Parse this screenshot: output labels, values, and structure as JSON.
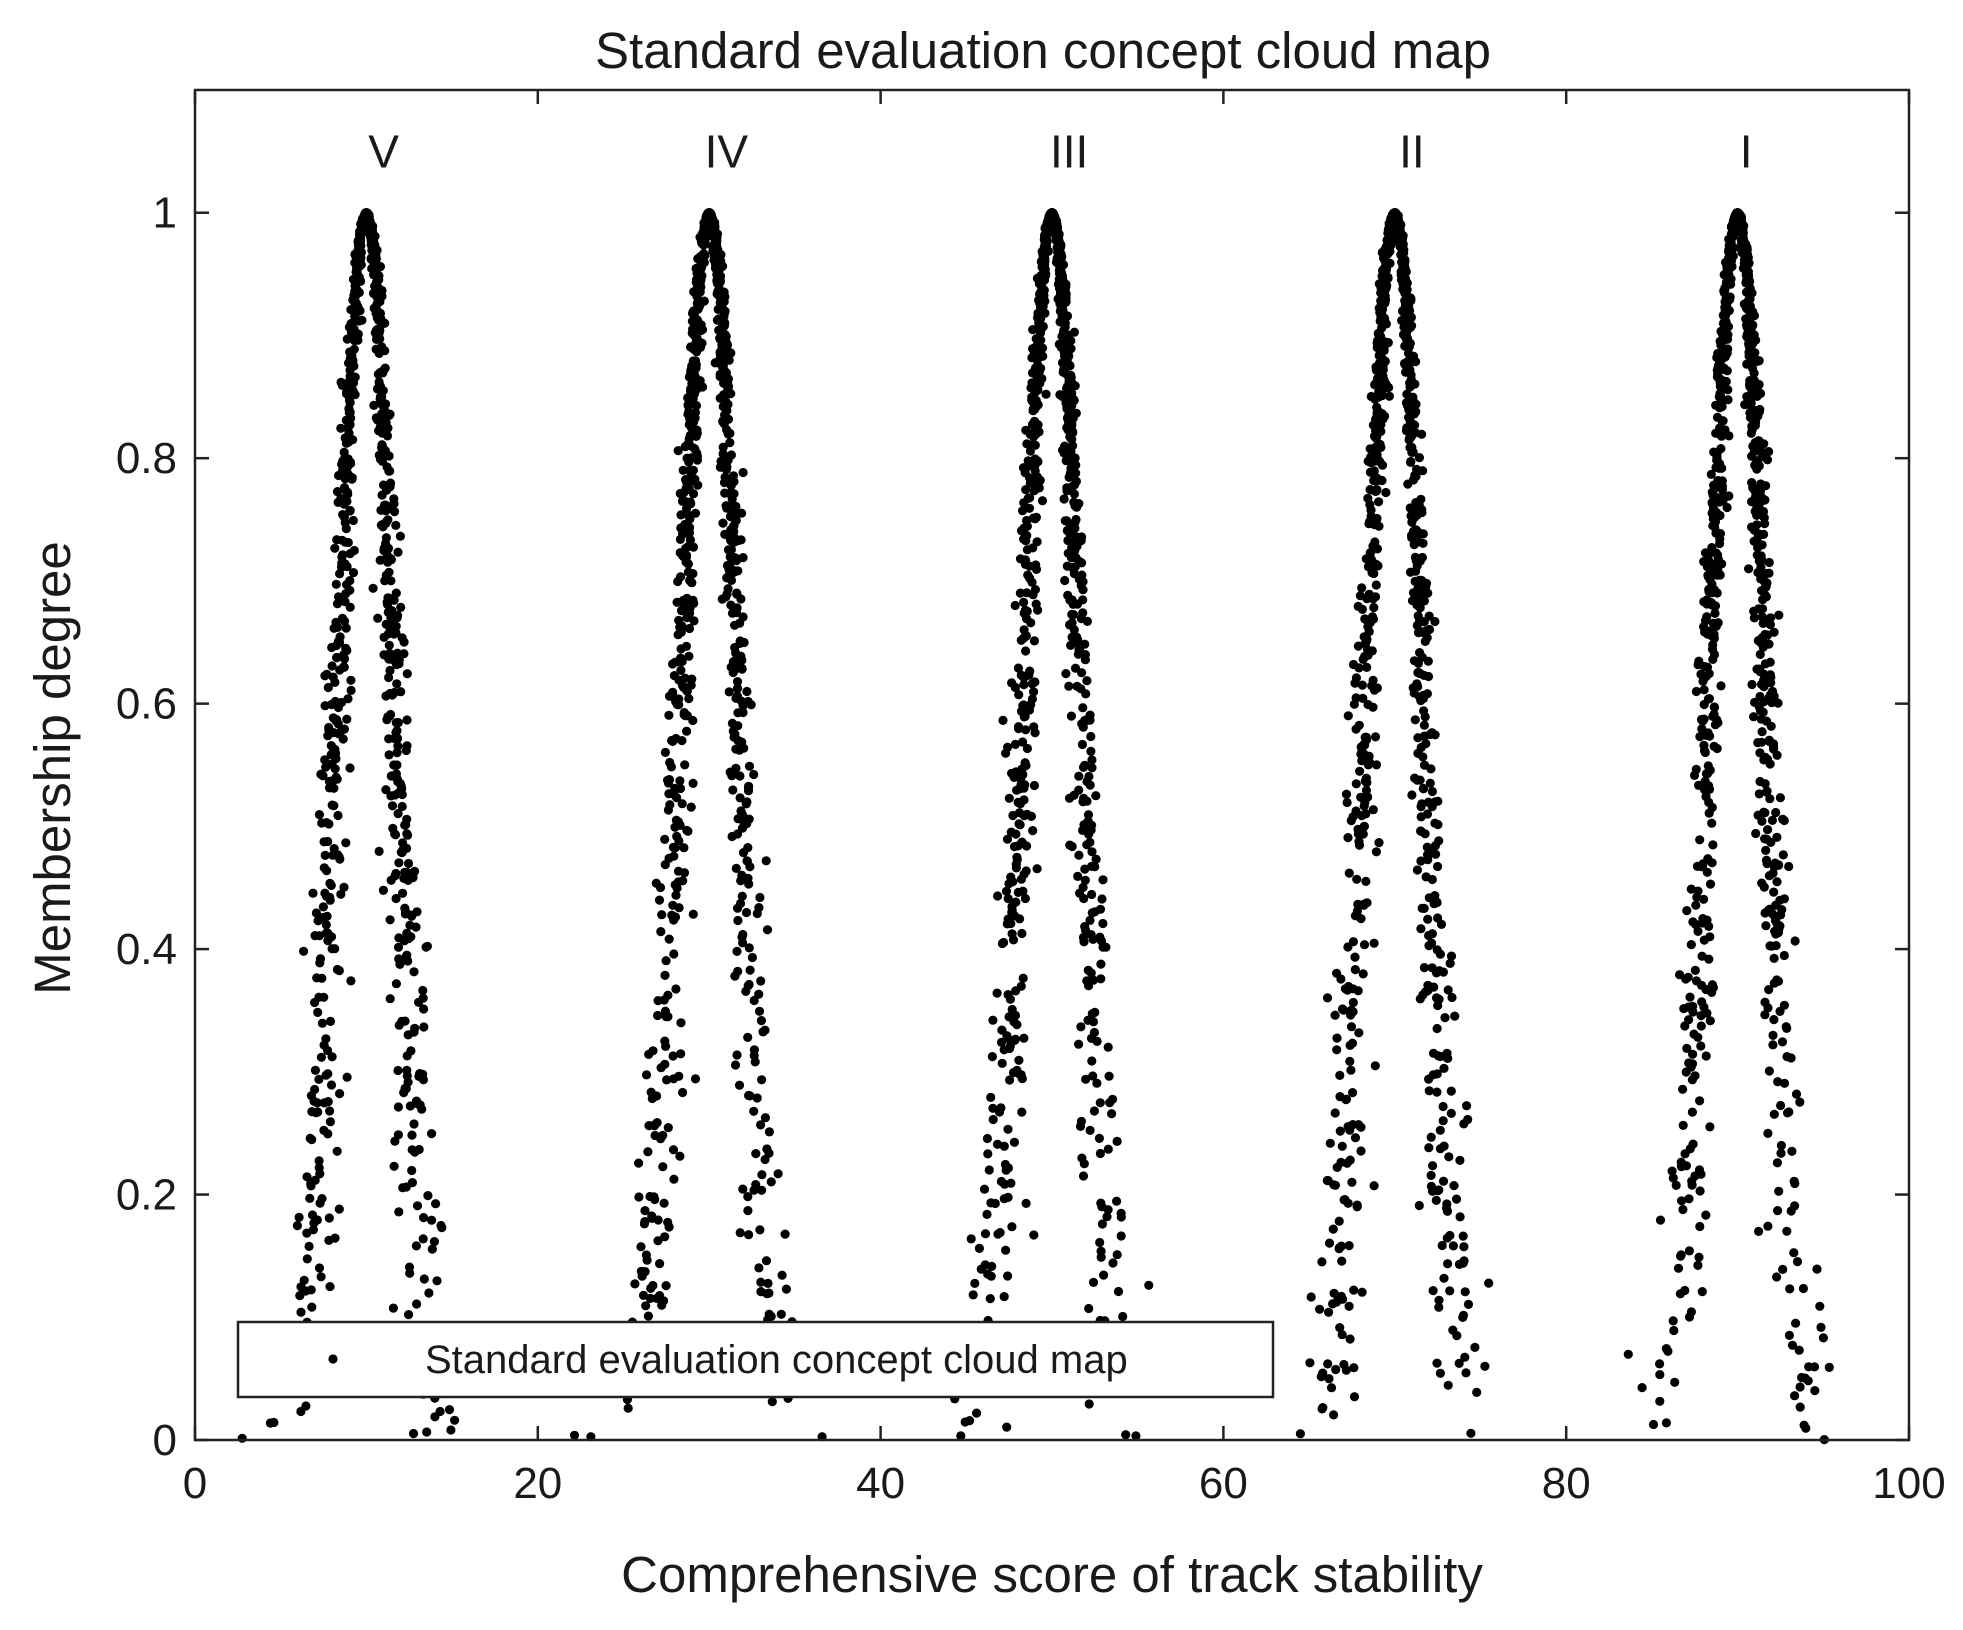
{
  "chart_data": {
    "type": "scatter",
    "title": "Standard evaluation concept cloud map",
    "xlabel": "Comprehensive score of track stability",
    "ylabel": "Membership degree",
    "xlim": [
      0,
      100
    ],
    "ylim": [
      0,
      1.1
    ],
    "xticks": [
      0,
      20,
      40,
      60,
      80,
      100
    ],
    "xtick_labels": [
      "0",
      "20",
      "40",
      "60",
      "80",
      "100"
    ],
    "yticks": [
      0,
      0.2,
      0.4,
      0.6,
      0.8,
      1
    ],
    "ytick_labels": [
      "0",
      "0.2",
      "0.4",
      "0.6",
      "0.8",
      "1"
    ],
    "grid": false,
    "legend": {
      "position": "bottom-left",
      "entries": [
        "Standard evaluation concept cloud map"
      ]
    },
    "marker_color": "#000000",
    "annotations": [
      {
        "text": "V",
        "x": 11,
        "y": 1.05
      },
      {
        "text": "IV",
        "x": 31,
        "y": 1.05
      },
      {
        "text": "III",
        "x": 51,
        "y": 1.05
      },
      {
        "text": "II",
        "x": 71,
        "y": 1.05
      },
      {
        "text": "I",
        "x": 90.5,
        "y": 1.05
      }
    ],
    "series": [
      {
        "name": "Standard evaluation concept cloud map",
        "clouds": [
          {
            "Ex": 10,
            "En": 1.67,
            "He": 0.35,
            "drops": 1000
          },
          {
            "Ex": 30,
            "En": 1.67,
            "He": 0.35,
            "drops": 1000
          },
          {
            "Ex": 50,
            "En": 1.67,
            "He": 0.35,
            "drops": 1000
          },
          {
            "Ex": 70,
            "En": 1.67,
            "He": 0.35,
            "drops": 1000
          },
          {
            "Ex": 90,
            "En": 1.67,
            "He": 0.35,
            "drops": 1000
          }
        ]
      }
    ]
  }
}
